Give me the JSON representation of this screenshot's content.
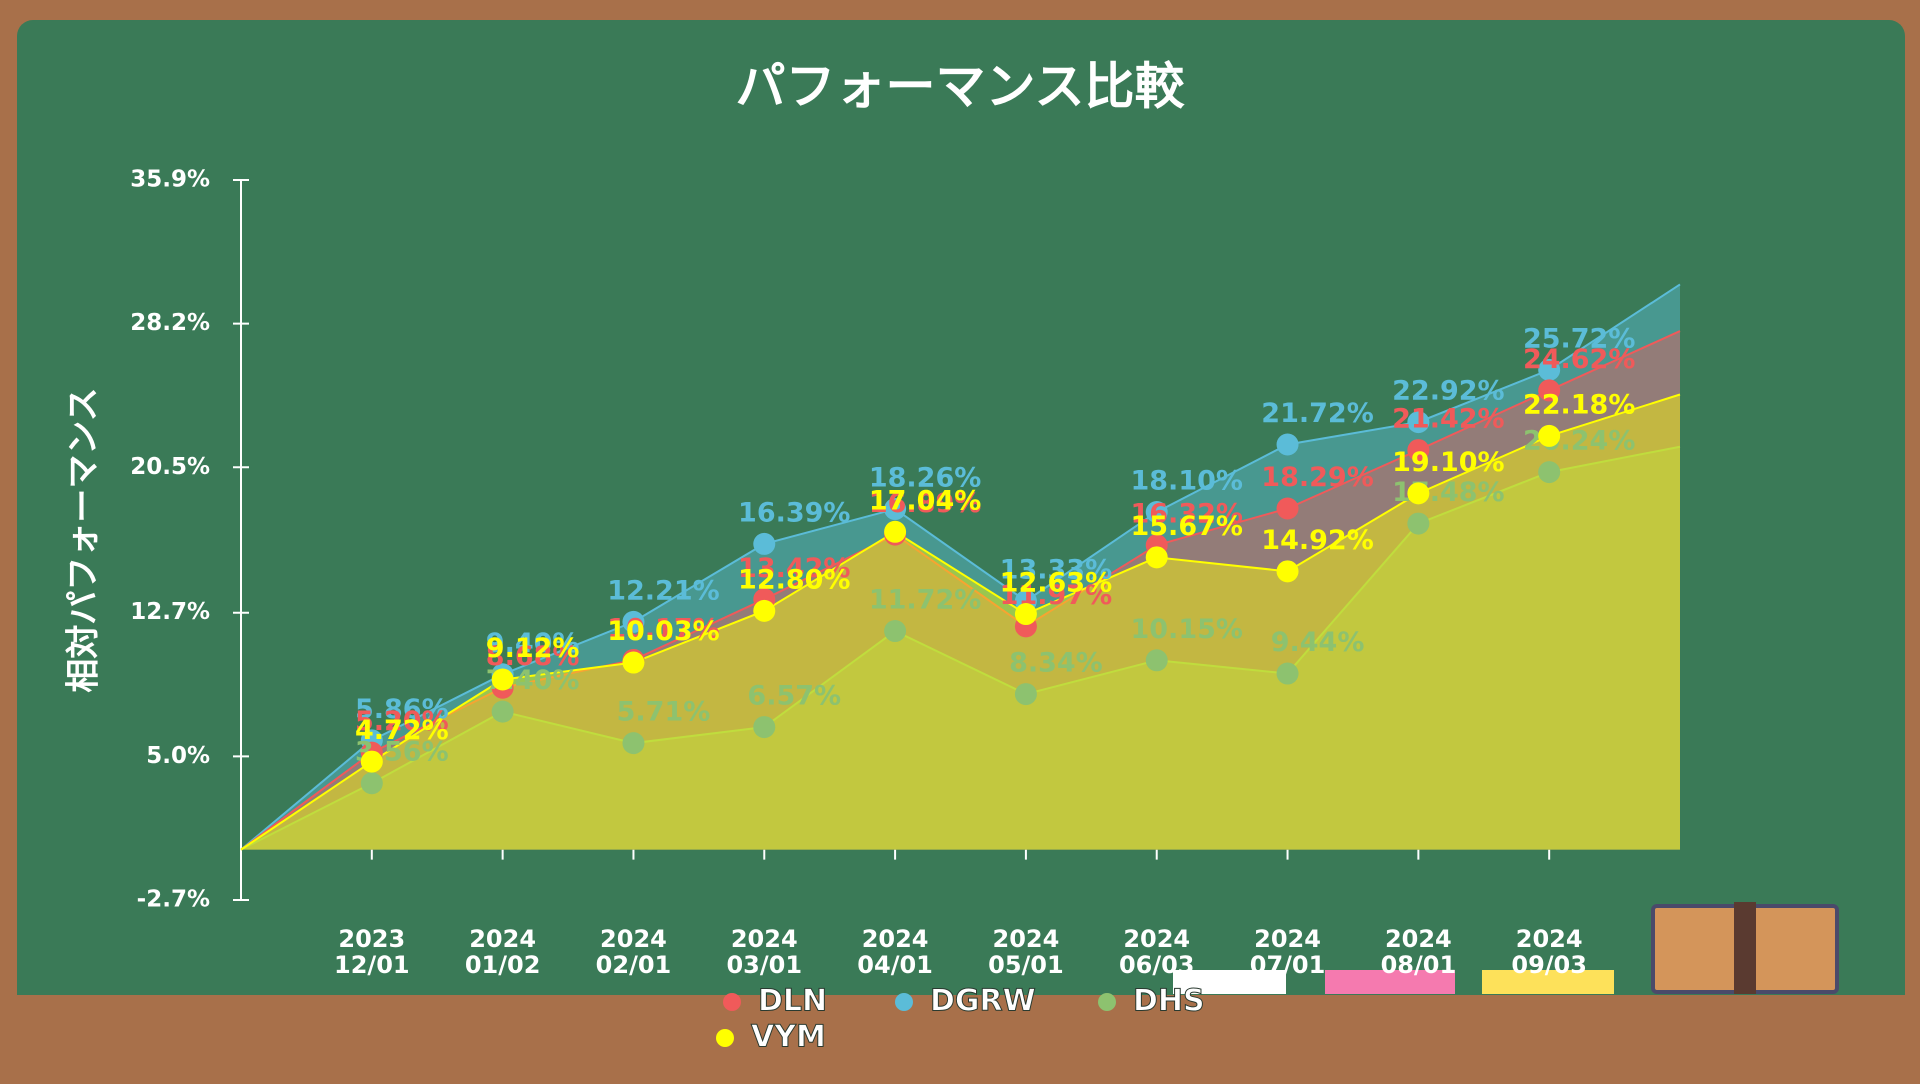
{
  "chart_data": {
    "type": "area",
    "title": "パフォーマンス比較",
    "y_label": "相対パフォーマンス",
    "categories": [
      null,
      [
        "2023",
        "12/01"
      ],
      [
        "2024",
        "01/02"
      ],
      [
        "2024",
        "02/01"
      ],
      [
        "2024",
        "03/01"
      ],
      [
        "2024",
        "04/01"
      ],
      [
        "2024",
        "05/01"
      ],
      [
        "2024",
        "06/03"
      ],
      [
        "2024",
        "07/01"
      ],
      [
        "2024",
        "08/01"
      ],
      [
        "2024",
        "09/03"
      ],
      null
    ],
    "series": [
      {
        "name": "DGRW",
        "color": "#5bbcd8",
        "values": [
          0,
          5.86,
          9.4,
          12.21,
          16.39,
          18.26,
          13.33,
          18.1,
          21.72,
          22.92,
          25.72,
          30.3
        ],
        "value_labels": [
          null,
          "5.86%",
          "9.40%",
          "12.21%",
          "16.39%",
          "18.26%",
          "13.33%",
          "18.10%",
          "21.72%",
          "22.92%",
          "25.72%",
          null
        ]
      },
      {
        "name": "DLN",
        "color": "#f05a5a",
        "values": [
          0,
          5.2,
          8.68,
          10.17,
          13.42,
          16.89,
          11.97,
          16.32,
          18.29,
          21.42,
          24.62,
          27.8
        ],
        "value_labels": [
          null,
          "5.20%",
          "8.68%",
          "10.17%",
          "13.42%",
          "16.89%",
          "11.97%",
          "16.32%",
          "18.29%",
          "21.42%",
          "24.62%",
          null
        ]
      },
      {
        "name": "DHS",
        "color": "#8dc26f",
        "values": [
          0,
          3.56,
          7.4,
          5.71,
          6.57,
          11.72,
          8.34,
          10.15,
          9.44,
          17.48,
          20.24,
          21.6
        ],
        "value_labels": [
          null,
          "3.56%",
          "7.40%",
          "5.71%",
          "6.57%",
          "11.72%",
          "8.34%",
          "10.15%",
          "9.44%",
          "17.48%",
          "20.24%",
          null
        ]
      },
      {
        "name": "VYM",
        "color": "#ffff00",
        "values": [
          0,
          4.72,
          9.12,
          10.03,
          12.8,
          17.04,
          12.63,
          15.67,
          14.92,
          19.1,
          22.18,
          24.4
        ],
        "value_labels": [
          null,
          "4.72%",
          "9.12%",
          "10.03%",
          "12.80%",
          "17.04%",
          "12.63%",
          "15.67%",
          "14.92%",
          "19.10%",
          "22.18%",
          null
        ]
      }
    ],
    "ylim": [
      -2.7,
      35.9
    ],
    "yticks": [
      {
        "value": -2.7,
        "label": "-2.7%"
      },
      {
        "value": 5.0,
        "label": "5.0%"
      },
      {
        "value": 12.7,
        "label": "12.7%"
      },
      {
        "value": 20.5,
        "label": "20.5%"
      },
      {
        "value": 28.2,
        "label": "28.2%"
      },
      {
        "value": 35.9,
        "label": "35.9%"
      }
    ]
  }
}
